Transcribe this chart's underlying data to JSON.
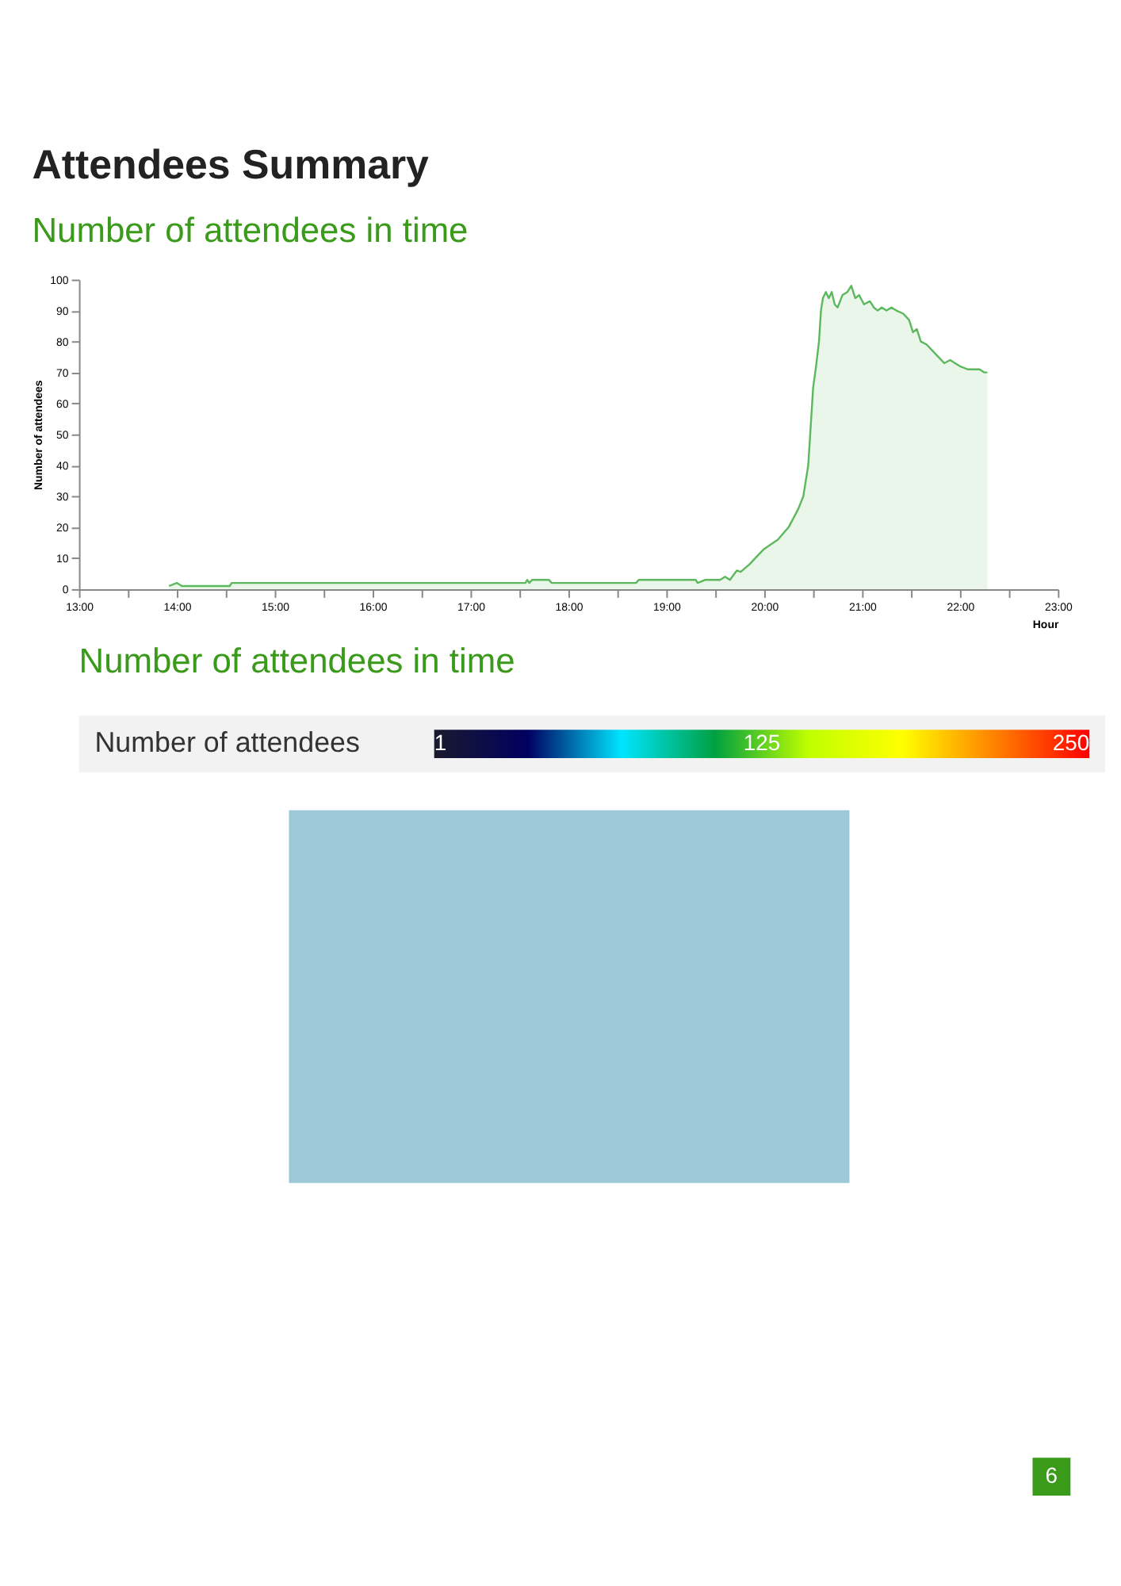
{
  "chart_data": [
    {
      "type": "area",
      "title": "Attendees Summary",
      "subtitle": "Number of attendees in time",
      "xlabel": "Hour",
      "ylabel": "Number of attendees",
      "series": [
        {
          "color": "#5cb85c",
          "x": [
            13.92,
            14.0,
            14.05,
            14.54,
            14.56,
            17.56,
            17.58,
            17.6,
            17.63,
            17.8,
            17.83,
            18.69,
            18.72,
            19.3,
            19.32,
            19.4,
            19.55,
            19.6,
            19.65,
            19.72,
            19.76,
            19.85,
            19.93,
            20.0,
            20.14,
            20.25,
            20.35,
            20.4,
            20.45,
            20.48,
            20.5,
            20.53,
            20.56,
            20.58,
            20.6,
            20.63,
            20.66,
            20.69,
            20.72,
            20.75,
            20.8,
            20.85,
            20.89,
            20.93,
            20.97,
            21.02,
            21.08,
            21.12,
            21.16,
            21.2,
            21.25,
            21.3,
            21.35,
            21.42,
            21.48,
            21.52,
            21.56,
            21.6,
            21.66,
            21.72,
            21.78,
            21.84,
            21.9,
            21.95,
            22.0,
            22.08,
            22.15,
            22.2,
            22.25,
            22.28
          ],
          "values": [
            1,
            2,
            1,
            1,
            2,
            2,
            3,
            2,
            3,
            3,
            2,
            2,
            3,
            3,
            2,
            3,
            3,
            4,
            3,
            6,
            5.6,
            8,
            10.7,
            13,
            16,
            20,
            26,
            30,
            40,
            55,
            65,
            72,
            80,
            90,
            94,
            96,
            94,
            96,
            92,
            91,
            95,
            96,
            98,
            94,
            95,
            92,
            93,
            91,
            90,
            91,
            90,
            91,
            90,
            89,
            87,
            83,
            84,
            80,
            79,
            77,
            75,
            73,
            74,
            73,
            72,
            71,
            71,
            71,
            70,
            70
          ]
        }
      ],
      "xlim": [
        13,
        23
      ],
      "ylim": [
        0,
        100
      ],
      "xticks": [
        {
          "value": 13,
          "label": "13:00"
        },
        {
          "value": 13.5,
          "label": null
        },
        {
          "value": 14,
          "label": "14:00"
        },
        {
          "value": 14.5,
          "label": null
        },
        {
          "value": 15,
          "label": "15:00"
        },
        {
          "value": 15.5,
          "label": null
        },
        {
          "value": 16,
          "label": "16:00"
        },
        {
          "value": 16.5,
          "label": null
        },
        {
          "value": 17,
          "label": "17:00"
        },
        {
          "value": 17.5,
          "label": null
        },
        {
          "value": 18,
          "label": "18:00"
        },
        {
          "value": 18.5,
          "label": null
        },
        {
          "value": 19,
          "label": "19:00"
        },
        {
          "value": 19.5,
          "label": null
        },
        {
          "value": 20,
          "label": "20:00"
        },
        {
          "value": 20.5,
          "label": null
        },
        {
          "value": 21,
          "label": "21:00"
        },
        {
          "value": 21.5,
          "label": null
        },
        {
          "value": 22,
          "label": "22:00"
        },
        {
          "value": 22.5,
          "label": null
        },
        {
          "value": 23,
          "label": "23:00"
        }
      ],
      "yticks": [
        0,
        10,
        20,
        30,
        40,
        50,
        60,
        70,
        80,
        90,
        100
      ],
      "grid": false
    },
    {
      "type": "other",
      "title": "Number of attendees in time",
      "colors": [
        "#1a1a2e",
        "#000060",
        "#00e5ff",
        "#00a040",
        "#c0ff00",
        "#ffff00",
        "#ff8000",
        "#ff0000"
      ],
      "annotations": [
        "Number of attendees",
        "1",
        "125",
        "250",
        "6"
      ]
    }
  ]
}
